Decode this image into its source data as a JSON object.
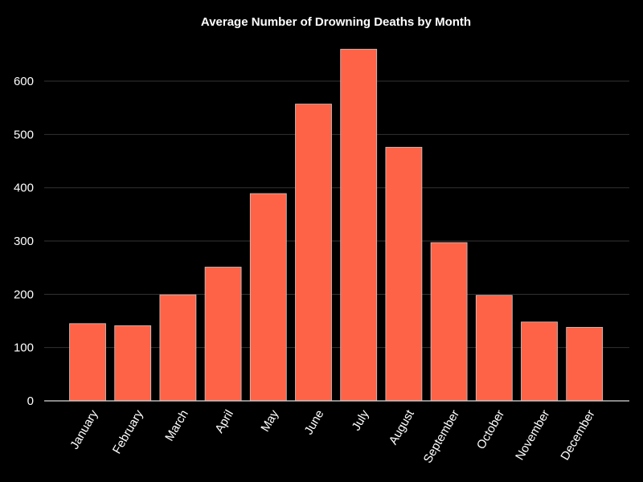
{
  "chart_data": {
    "type": "bar",
    "title": "Average Number of Drowning Deaths by Month",
    "xlabel": "",
    "ylabel": "",
    "categories": [
      "January",
      "February",
      "March",
      "April",
      "May",
      "June",
      "July",
      "August",
      "September",
      "October",
      "November",
      "December"
    ],
    "values": [
      145,
      141,
      199,
      251,
      389,
      557,
      660,
      476,
      297,
      198,
      148,
      138
    ],
    "ylim": [
      0,
      680
    ],
    "yticks": [
      0,
      100,
      200,
      300,
      400,
      500,
      600
    ],
    "grid": "horizontal",
    "legend": "none",
    "colors": {
      "background": "#000000",
      "bar": "#ff6347",
      "text": "#ffffff",
      "grid": "#333333"
    }
  }
}
